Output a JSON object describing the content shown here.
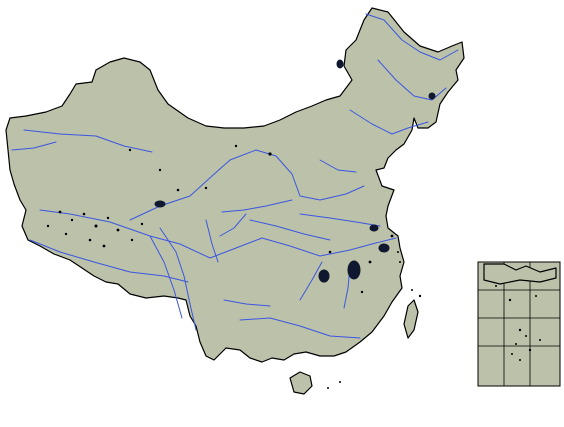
{
  "map": {
    "colors": {
      "land": "#bcc2aa",
      "border": "#000000",
      "river": "#3b56e0",
      "lake": "#101830",
      "background": "#ffffff"
    },
    "layers": [
      "land-outline",
      "rivers",
      "lakes",
      "south-sea-inset"
    ]
  }
}
